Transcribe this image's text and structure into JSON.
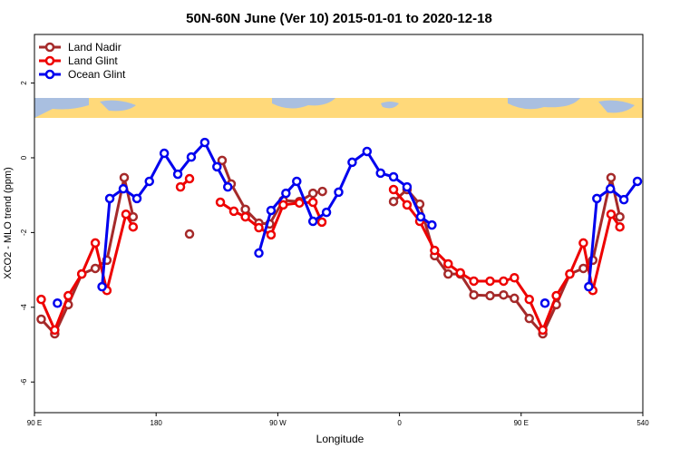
{
  "chart_data": {
    "type": "line",
    "title": "50N-60N June (Ver 10)   2015-01-01 to 2020-12-18",
    "x_label": "Longitude",
    "y_label": "XCO2 - MLO trend (ppm)",
    "xlim": [
      90,
      540
    ],
    "ylim": [
      -6.82,
      3.3
    ],
    "xticks": [
      {
        "value": 90,
        "label": "90 E"
      },
      180,
      {
        "value": 270,
        "label": "90 W"
      },
      {
        "value": 360,
        "label": "0"
      },
      {
        "value": 450,
        "label": "90 E"
      },
      540
    ],
    "yticks": [
      2,
      0,
      -2,
      -4,
      -6
    ],
    "legend": "top-left",
    "series": [
      {
        "name": "Land Nadir",
        "color": "#a52a2a",
        "x": [
          95,
          105,
          115,
          125,
          135,
          143.6,
          156.4,
          163,
          null,
          204.7,
          null,
          228.8,
          235.5,
          246,
          256,
          264,
          274,
          286,
          296,
          303,
          null,
          355.6,
          365.6,
          375,
          386,
          396,
          405,
          415,
          427,
          437,
          445,
          456,
          466,
          476,
          486,
          496,
          503,
          516.5,
          523
        ],
        "values": [
          -4.32,
          -4.71,
          -3.93,
          -3.11,
          -2.96,
          -2.74,
          -0.53,
          -1.58,
          null,
          -2.04,
          null,
          -0.07,
          -0.7,
          -1.38,
          -1.75,
          -1.77,
          -1.14,
          -1.17,
          -0.95,
          -0.9,
          null,
          -1.17,
          -0.85,
          -1.24,
          -2.62,
          -3.11,
          -3.11,
          -3.67,
          -3.69,
          -3.67,
          -3.76,
          -4.3,
          -4.71,
          -3.93,
          -3.11,
          -2.96,
          -2.74,
          -0.53,
          -1.58
        ]
      },
      {
        "name": "Land Glint",
        "color": "#ee0000",
        "x": [
          95,
          105,
          115,
          125,
          135,
          143.6,
          157.7,
          163,
          null,
          198,
          204.7,
          null,
          227.5,
          237.5,
          246,
          256,
          265,
          274,
          286,
          296,
          302.6,
          null,
          355.6,
          365.6,
          375,
          386,
          396,
          405,
          415,
          427,
          437,
          445,
          456,
          466,
          476,
          486,
          496,
          503,
          516.5,
          523
        ],
        "values": [
          -3.79,
          -4.61,
          -3.69,
          -3.11,
          -2.28,
          -3.55,
          -1.51,
          -1.85,
          null,
          -0.78,
          -0.56,
          null,
          -1.19,
          -1.43,
          -1.58,
          -1.87,
          -2.06,
          -1.26,
          -1.21,
          -1.19,
          -1.72,
          null,
          -0.85,
          -1.26,
          -1.7,
          -2.48,
          -2.84,
          -3.08,
          -3.3,
          -3.3,
          -3.3,
          -3.21,
          -3.79,
          -4.61,
          -3.69,
          -3.11,
          -2.28,
          -3.55,
          -1.51,
          -1.85
        ]
      },
      {
        "name": "Ocean Glint",
        "color": "#0000ee",
        "x": [
          107,
          null,
          140,
          145.7,
          155.7,
          165.8,
          175,
          186,
          196,
          206,
          216,
          225,
          233,
          null,
          256,
          265,
          276,
          284,
          296,
          306,
          315,
          325,
          336,
          346,
          355.6,
          365.6,
          375.7,
          384,
          null,
          467.6,
          null,
          500,
          506,
          516,
          526,
          536
        ],
        "values": [
          -3.89,
          null,
          -3.45,
          -1.09,
          -0.83,
          -1.09,
          -0.63,
          0.12,
          -0.44,
          0.02,
          0.41,
          -0.24,
          -0.78,
          null,
          -2.55,
          -1.41,
          -0.95,
          -0.63,
          -1.7,
          -1.46,
          -0.92,
          -0.12,
          0.17,
          -0.41,
          -0.51,
          -0.78,
          -1.58,
          -1.8,
          null,
          -3.89,
          null,
          -3.45,
          -1.09,
          -0.83,
          -1.12,
          -0.63
        ]
      }
    ]
  }
}
